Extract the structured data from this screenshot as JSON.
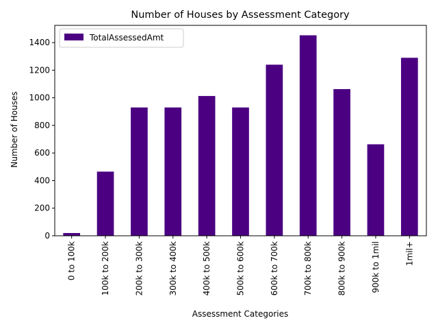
{
  "chart_data": {
    "type": "bar",
    "title": "Number of Houses by Assessment Category",
    "xlabel": "Assessment Categories",
    "ylabel": "Number of Houses",
    "categories": [
      "0 to 100k",
      "100k to 200k",
      "200k to 300k",
      "300k to 400k",
      "400k to 500k",
      "500k to 600k",
      "600k to 700k",
      "700k to 800k",
      "800k to 900k",
      "900k to 1mil",
      "1mil+"
    ],
    "series": [
      {
        "name": "TotalAssessedAmt",
        "values": [
          20,
          465,
          930,
          930,
          1013,
          930,
          1240,
          1453,
          1063,
          663,
          1290
        ],
        "color": "#4b0082"
      }
    ],
    "ylim": [
      0,
      1525
    ],
    "yticks": [
      0,
      200,
      400,
      600,
      800,
      1000,
      1200,
      1400
    ],
    "grid": false,
    "legend_position": "top-left"
  }
}
